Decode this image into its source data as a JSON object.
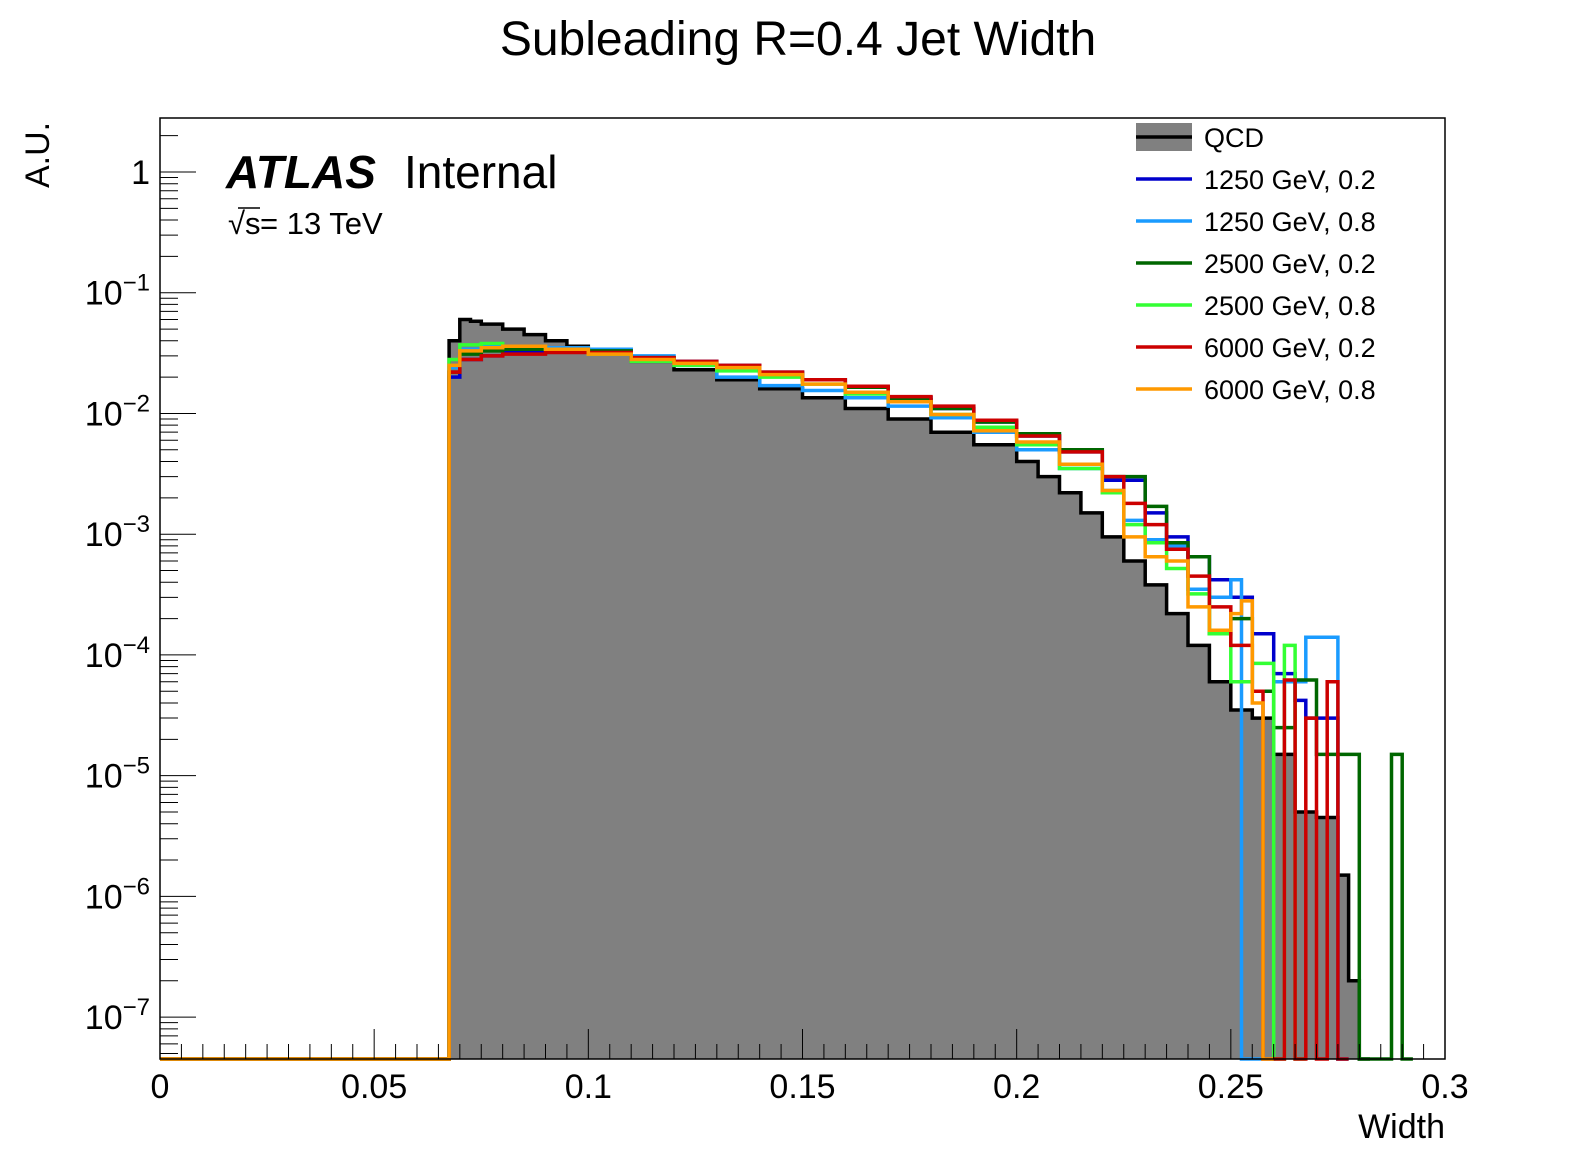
{
  "chart_data": {
    "type": "histogram",
    "title": "Subleading R=0.4 Jet Width",
    "xlabel": "Width",
    "ylabel": "A.U.",
    "xlim": [
      0,
      0.3
    ],
    "ylim": [
      4.5e-08,
      2.8
    ],
    "yscale": "log",
    "x_ticks": [
      "0",
      "0.05",
      "0.1",
      "0.15",
      "0.2",
      "0.25",
      "0.3"
    ],
    "y_ticks": [
      {
        "base": "1",
        "exp": ""
      },
      {
        "base": "10",
        "exp": "−1"
      },
      {
        "base": "10",
        "exp": "−2"
      },
      {
        "base": "10",
        "exp": "−3"
      },
      {
        "base": "10",
        "exp": "−4"
      },
      {
        "base": "10",
        "exp": "−5"
      },
      {
        "base": "10",
        "exp": "−6"
      },
      {
        "base": "10",
        "exp": "−7"
      }
    ],
    "label": {
      "experiment": "ATLAS",
      "status": "Internal",
      "energy_sqrt": "√s",
      "energy_rest": " = 13 TeV"
    },
    "legend_position": "top-right",
    "bin_width": 0.0025,
    "series": [
      {
        "name": "QCD",
        "color": "#000000",
        "fill": "#808080",
        "style": "filled",
        "points": [
          [
            0.0,
            0
          ],
          [
            0.0675,
            0
          ],
          [
            0.0675,
            0.04
          ],
          [
            0.07,
            0.06
          ],
          [
            0.0725,
            0.058
          ],
          [
            0.075,
            0.055
          ],
          [
            0.08,
            0.05
          ],
          [
            0.085,
            0.045
          ],
          [
            0.09,
            0.04
          ],
          [
            0.095,
            0.036
          ],
          [
            0.1,
            0.032
          ],
          [
            0.11,
            0.027
          ],
          [
            0.12,
            0.023
          ],
          [
            0.13,
            0.019
          ],
          [
            0.14,
            0.016
          ],
          [
            0.15,
            0.0135
          ],
          [
            0.16,
            0.011
          ],
          [
            0.17,
            0.009
          ],
          [
            0.18,
            0.007
          ],
          [
            0.19,
            0.0055
          ],
          [
            0.2,
            0.004
          ],
          [
            0.205,
            0.003
          ],
          [
            0.21,
            0.0022
          ],
          [
            0.215,
            0.0015
          ],
          [
            0.22,
            0.00095
          ],
          [
            0.225,
            0.0006
          ],
          [
            0.23,
            0.00038
          ],
          [
            0.235,
            0.00022
          ],
          [
            0.24,
            0.00012
          ],
          [
            0.245,
            6e-05
          ],
          [
            0.25,
            3.5e-05
          ],
          [
            0.255,
            3e-05
          ],
          [
            0.26,
            1.5e-05
          ],
          [
            0.265,
            5e-06
          ],
          [
            0.2675,
            5e-06
          ],
          [
            0.27,
            4.5e-06
          ],
          [
            0.2725,
            4.5e-06
          ],
          [
            0.275,
            1.5e-06
          ],
          [
            0.2775,
            2e-07
          ],
          [
            0.28,
            0
          ]
        ]
      },
      {
        "name": "1250 GeV, 0.2",
        "color": "#0000cc",
        "style": "line",
        "points": [
          [
            0.0,
            0
          ],
          [
            0.0675,
            0
          ],
          [
            0.0675,
            0.02
          ],
          [
            0.07,
            0.028
          ],
          [
            0.075,
            0.03
          ],
          [
            0.08,
            0.032
          ],
          [
            0.09,
            0.033
          ],
          [
            0.1,
            0.032
          ],
          [
            0.11,
            0.029
          ],
          [
            0.12,
            0.027
          ],
          [
            0.13,
            0.025
          ],
          [
            0.14,
            0.022
          ],
          [
            0.15,
            0.019
          ],
          [
            0.16,
            0.0165
          ],
          [
            0.17,
            0.0135
          ],
          [
            0.18,
            0.011
          ],
          [
            0.19,
            0.0085
          ],
          [
            0.2,
            0.0065
          ],
          [
            0.21,
            0.0048
          ],
          [
            0.22,
            0.0028
          ],
          [
            0.23,
            0.0015
          ],
          [
            0.235,
            0.00095
          ],
          [
            0.24,
            0.00065
          ],
          [
            0.245,
            0.00042
          ],
          [
            0.25,
            0.0003
          ],
          [
            0.255,
            0.00015
          ],
          [
            0.26,
            7e-05
          ],
          [
            0.265,
            4.2e-05
          ],
          [
            0.2675,
            3e-05
          ],
          [
            0.2725,
            3e-05
          ],
          [
            0.275,
            0
          ]
        ]
      },
      {
        "name": "1250 GeV, 0.8",
        "color": "#1a9bff",
        "style": "line",
        "points": [
          [
            0.0,
            0
          ],
          [
            0.0675,
            0
          ],
          [
            0.0675,
            0.024
          ],
          [
            0.07,
            0.034
          ],
          [
            0.075,
            0.036
          ],
          [
            0.08,
            0.036
          ],
          [
            0.09,
            0.035
          ],
          [
            0.1,
            0.034
          ],
          [
            0.11,
            0.03
          ],
          [
            0.12,
            0.025
          ],
          [
            0.13,
            0.02
          ],
          [
            0.14,
            0.017
          ],
          [
            0.15,
            0.0155
          ],
          [
            0.16,
            0.0135
          ],
          [
            0.17,
            0.0115
          ],
          [
            0.18,
            0.0092
          ],
          [
            0.19,
            0.007
          ],
          [
            0.2,
            0.005
          ],
          [
            0.21,
            0.0035
          ],
          [
            0.22,
            0.0023
          ],
          [
            0.225,
            0.0013
          ],
          [
            0.23,
            0.0009
          ],
          [
            0.235,
            0.0008
          ],
          [
            0.24,
            0.00035
          ],
          [
            0.245,
            0.0003
          ],
          [
            0.25,
            0.00042
          ],
          [
            0.2525,
            0
          ],
          [
            0.2575,
            0
          ],
          [
            0.26,
            6e-05
          ],
          [
            0.2675,
            0.00014
          ],
          [
            0.275,
            0
          ]
        ]
      },
      {
        "name": "2500 GeV, 0.2",
        "color": "#006600",
        "style": "line",
        "points": [
          [
            0.0,
            0
          ],
          [
            0.0675,
            0
          ],
          [
            0.0675,
            0.022
          ],
          [
            0.07,
            0.031
          ],
          [
            0.075,
            0.033
          ],
          [
            0.08,
            0.034
          ],
          [
            0.09,
            0.034
          ],
          [
            0.1,
            0.033
          ],
          [
            0.11,
            0.029
          ],
          [
            0.12,
            0.026
          ],
          [
            0.13,
            0.0245
          ],
          [
            0.14,
            0.0215
          ],
          [
            0.15,
            0.019
          ],
          [
            0.16,
            0.0165
          ],
          [
            0.17,
            0.013
          ],
          [
            0.18,
            0.011
          ],
          [
            0.19,
            0.0085
          ],
          [
            0.2,
            0.0068
          ],
          [
            0.21,
            0.005
          ],
          [
            0.22,
            0.003
          ],
          [
            0.23,
            0.0017
          ],
          [
            0.235,
            0.00085
          ],
          [
            0.24,
            0.00065
          ],
          [
            0.245,
            0.00015
          ],
          [
            0.25,
            0.0002
          ],
          [
            0.255,
            5e-05
          ],
          [
            0.26,
            2.5e-05
          ],
          [
            0.265,
            6.2e-05
          ],
          [
            0.27,
            1.5e-05
          ],
          [
            0.2775,
            1.5e-05
          ],
          [
            0.28,
            0
          ],
          [
            0.2875,
            0
          ],
          [
            0.2875,
            1.5e-05
          ],
          [
            0.29,
            0
          ]
        ]
      },
      {
        "name": "2500 GeV, 0.8",
        "color": "#33ff33",
        "style": "line",
        "points": [
          [
            0.0,
            0
          ],
          [
            0.0675,
            0
          ],
          [
            0.0675,
            0.028
          ],
          [
            0.07,
            0.037
          ],
          [
            0.075,
            0.038
          ],
          [
            0.08,
            0.036
          ],
          [
            0.09,
            0.034
          ],
          [
            0.1,
            0.031
          ],
          [
            0.11,
            0.027
          ],
          [
            0.12,
            0.025
          ],
          [
            0.13,
            0.0225
          ],
          [
            0.14,
            0.02
          ],
          [
            0.15,
            0.0175
          ],
          [
            0.16,
            0.0145
          ],
          [
            0.17,
            0.0125
          ],
          [
            0.18,
            0.0098
          ],
          [
            0.19,
            0.0077
          ],
          [
            0.2,
            0.0055
          ],
          [
            0.21,
            0.0035
          ],
          [
            0.22,
            0.0022
          ],
          [
            0.225,
            0.0012
          ],
          [
            0.23,
            0.00085
          ],
          [
            0.235,
            0.00052
          ],
          [
            0.24,
            0.00032
          ],
          [
            0.245,
            0.00015
          ],
          [
            0.25,
            6e-05
          ],
          [
            0.255,
            8.5e-05
          ],
          [
            0.26,
            0
          ],
          [
            0.2625,
            0.00012
          ],
          [
            0.265,
            0
          ]
        ]
      },
      {
        "name": "6000 GeV, 0.2",
        "color": "#cc0000",
        "style": "line",
        "points": [
          [
            0.0,
            0
          ],
          [
            0.0675,
            0
          ],
          [
            0.0675,
            0.022
          ],
          [
            0.07,
            0.028
          ],
          [
            0.075,
            0.03
          ],
          [
            0.08,
            0.031
          ],
          [
            0.09,
            0.032
          ],
          [
            0.1,
            0.032
          ],
          [
            0.11,
            0.029
          ],
          [
            0.12,
            0.027
          ],
          [
            0.13,
            0.025
          ],
          [
            0.14,
            0.022
          ],
          [
            0.15,
            0.019
          ],
          [
            0.16,
            0.0168
          ],
          [
            0.17,
            0.0138
          ],
          [
            0.18,
            0.0115
          ],
          [
            0.19,
            0.0088
          ],
          [
            0.2,
            0.0065
          ],
          [
            0.21,
            0.0048
          ],
          [
            0.22,
            0.003
          ],
          [
            0.225,
            0.0018
          ],
          [
            0.23,
            0.0012
          ],
          [
            0.235,
            0.00075
          ],
          [
            0.24,
            0.00045
          ],
          [
            0.245,
            0.00025
          ],
          [
            0.25,
            0.00012
          ],
          [
            0.255,
            5e-05
          ],
          [
            0.2575,
            0
          ],
          [
            0.2625,
            6.2e-05
          ],
          [
            0.265,
            0
          ],
          [
            0.2675,
            3e-05
          ],
          [
            0.27,
            0
          ],
          [
            0.2725,
            6e-05
          ],
          [
            0.275,
            0
          ]
        ]
      },
      {
        "name": "6000 GeV, 0.8",
        "color": "#ff9900",
        "style": "line",
        "points": [
          [
            0.0,
            0
          ],
          [
            0.0675,
            0
          ],
          [
            0.0675,
            0.025
          ],
          [
            0.07,
            0.033
          ],
          [
            0.075,
            0.035
          ],
          [
            0.08,
            0.036
          ],
          [
            0.09,
            0.034
          ],
          [
            0.1,
            0.031
          ],
          [
            0.11,
            0.028
          ],
          [
            0.12,
            0.026
          ],
          [
            0.13,
            0.024
          ],
          [
            0.14,
            0.021
          ],
          [
            0.15,
            0.0175
          ],
          [
            0.16,
            0.015
          ],
          [
            0.17,
            0.0125
          ],
          [
            0.18,
            0.0098
          ],
          [
            0.19,
            0.0072
          ],
          [
            0.2,
            0.0058
          ],
          [
            0.21,
            0.0038
          ],
          [
            0.22,
            0.0023
          ],
          [
            0.225,
            0.00095
          ],
          [
            0.23,
            0.00065
          ],
          [
            0.235,
            0.0006
          ],
          [
            0.24,
            0.00025
          ],
          [
            0.245,
            0.00016
          ],
          [
            0.25,
            0.00022
          ],
          [
            0.2525,
            0.00028
          ],
          [
            0.255,
            4e-05
          ],
          [
            0.2575,
            0
          ]
        ]
      }
    ]
  }
}
